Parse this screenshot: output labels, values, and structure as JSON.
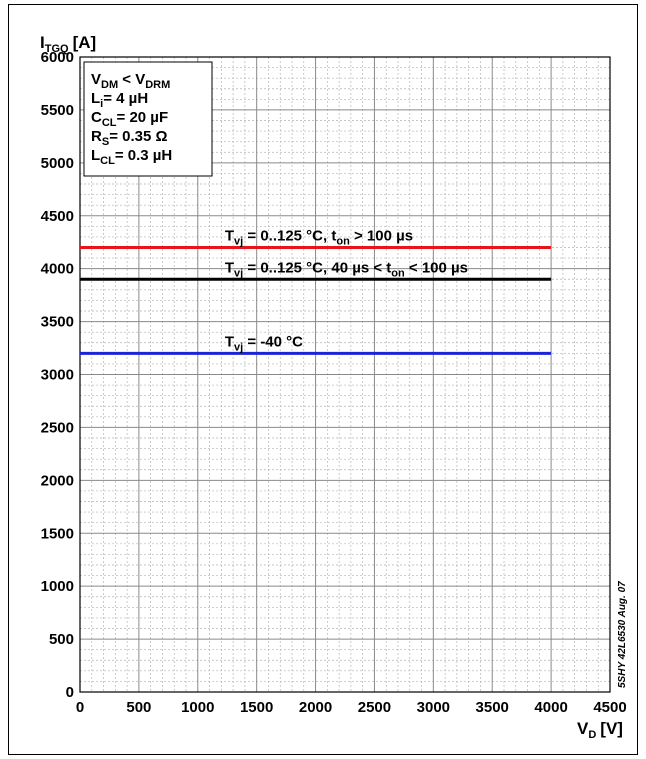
{
  "chart_data": {
    "type": "line",
    "y_axis": {
      "label_main": "I",
      "label_sub": "TGQ",
      "label_unit": "[A]",
      "range": [
        0,
        6000
      ],
      "major_step": 500,
      "minor_step": 100
    },
    "x_axis": {
      "label_main": "V",
      "label_sub": "D",
      "label_unit": "[V]",
      "range": [
        0,
        4500
      ],
      "major_step": 500,
      "minor_step": 100
    },
    "grid": true,
    "y_ticks": [
      "0",
      "500",
      "1000",
      "1500",
      "2000",
      "2500",
      "3000",
      "3500",
      "4000",
      "4500",
      "5000",
      "5500",
      "6000"
    ],
    "x_ticks": [
      "0",
      "500",
      "1000",
      "1500",
      "2000",
      "2500",
      "3000",
      "3500",
      "4000",
      "4500"
    ],
    "parameters": [
      {
        "main": "V",
        "sub": "DM",
        "rest": " < V",
        "sub2": "DRM",
        "rest2": ""
      },
      {
        "main": "L",
        "sub": "i",
        "rest": "= 4 µH",
        "sub2": "",
        "rest2": ""
      },
      {
        "main": "C",
        "sub": "CL",
        "rest": "= 20 µF",
        "sub2": "",
        "rest2": ""
      },
      {
        "main": "R",
        "sub": "S",
        "rest": "= 0.35 Ω",
        "sub2": "",
        "rest2": ""
      },
      {
        "main": "L",
        "sub": "CL",
        "rest": "= 0.3 µH",
        "sub2": "",
        "rest2": ""
      }
    ],
    "series": [
      {
        "x": [
          0,
          4000
        ],
        "values": [
          4200,
          4200
        ],
        "color": "#e8141c",
        "label": {
          "p1": "T",
          "s1": "vj",
          "p2": " = 0..125 °C, t",
          "s2": "on",
          "p3": " > 100 µs"
        }
      },
      {
        "x": [
          0,
          4000
        ],
        "values": [
          3900,
          3900
        ],
        "color": "#000000",
        "label": {
          "p1": "T",
          "s1": "vj",
          "p2": " = 0..125 °C, 40 µs < t",
          "s2": "on",
          "p3": " < 100 µs"
        }
      },
      {
        "x": [
          0,
          4000
        ],
        "values": [
          3200,
          3200
        ],
        "color": "#1c24d8",
        "label": {
          "p1": "T",
          "s1": "vj",
          "p2": " = -40 °C",
          "s2": "",
          "p3": ""
        }
      }
    ],
    "doc_ref": "5SHY 42L6530 Aug. 07"
  }
}
